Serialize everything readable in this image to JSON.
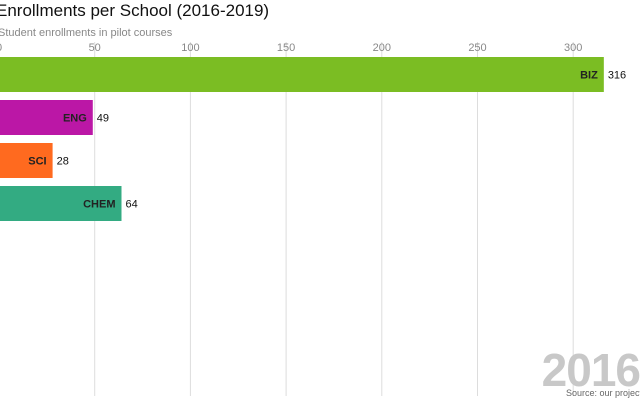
{
  "chart_data": {
    "type": "bar",
    "orientation": "horizontal",
    "title": "Enrollments per School (2016-2019)",
    "subtitle": "Student enrollments in pilot courses",
    "categories": [
      "BIZ",
      "ENG",
      "SCI",
      "CHEM"
    ],
    "values": [
      316,
      49,
      28,
      64
    ],
    "colors": [
      "#7bbd23",
      "#bb17a6",
      "#ff6a1f",
      "#33ab82"
    ],
    "xlim": [
      0,
      330
    ],
    "xticks": [
      0,
      50,
      100,
      150,
      200,
      250,
      300
    ],
    "grid": true,
    "year": "2016",
    "source": "Source: our project"
  }
}
